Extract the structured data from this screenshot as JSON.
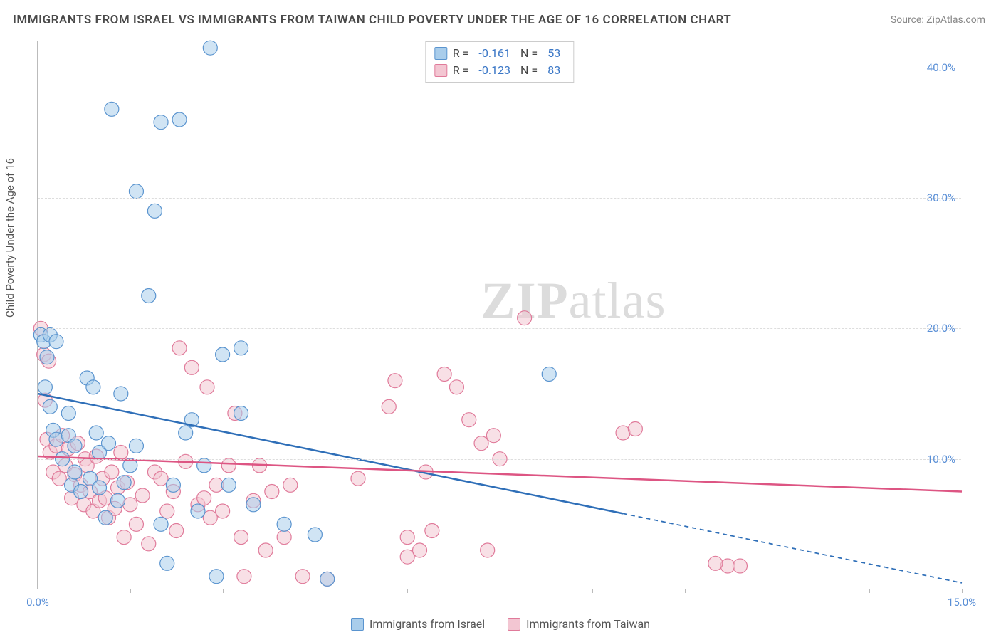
{
  "title": "IMMIGRANTS FROM ISRAEL VS IMMIGRANTS FROM TAIWAN CHILD POVERTY UNDER THE AGE OF 16 CORRELATION CHART",
  "source_prefix": "Source: ",
  "source_name": "ZipAtlas.com",
  "ylabel": "Child Poverty Under the Age of 16",
  "watermark_a": "ZIP",
  "watermark_b": "atlas",
  "chart": {
    "type": "scatter",
    "xlim": [
      0,
      15
    ],
    "ylim": [
      0,
      42
    ],
    "x_ticks": [
      0,
      1.5,
      3,
      4.5,
      6,
      7.5,
      9,
      10.5,
      12,
      13.5,
      15
    ],
    "x_tick_labels": {
      "0": "0.0%",
      "15": "15.0%"
    },
    "y_gridlines": [
      10,
      20,
      30,
      40
    ],
    "y_tick_labels": {
      "10": "10.0%",
      "20": "20.0%",
      "30": "30.0%",
      "40": "40.0%"
    },
    "grid_color": "#dddddd",
    "axis_color": "#bbbbbb",
    "label_color": "#5a8fd6",
    "background_color": "#ffffff",
    "point_radius": 10,
    "point_opacity": 0.55,
    "trend_line_width": 2.5,
    "series": [
      {
        "name": "Immigrants from Israel",
        "fill": "#a9cdeb",
        "stroke": "#5a94cf",
        "line_color": "#2f6fb8",
        "R": "-0.161",
        "N": "53",
        "trend": {
          "x1": 0,
          "y1": 15.0,
          "x2": 15,
          "y2": 0.5,
          "solid_until_x": 9.5
        },
        "points": [
          [
            0.05,
            19.5
          ],
          [
            0.1,
            19.0
          ],
          [
            0.12,
            15.5
          ],
          [
            0.15,
            17.8
          ],
          [
            0.2,
            14.0
          ],
          [
            0.2,
            19.5
          ],
          [
            0.25,
            12.2
          ],
          [
            0.3,
            19.0
          ],
          [
            0.3,
            11.5
          ],
          [
            0.4,
            10.0
          ],
          [
            0.5,
            11.8
          ],
          [
            0.5,
            13.5
          ],
          [
            0.55,
            8.0
          ],
          [
            0.6,
            9.0
          ],
          [
            0.6,
            11.0
          ],
          [
            0.7,
            7.5
          ],
          [
            0.8,
            16.2
          ],
          [
            0.85,
            8.5
          ],
          [
            0.9,
            15.5
          ],
          [
            0.95,
            12.0
          ],
          [
            1.0,
            7.8
          ],
          [
            1.0,
            10.5
          ],
          [
            1.1,
            5.5
          ],
          [
            1.15,
            11.2
          ],
          [
            1.2,
            36.8
          ],
          [
            1.3,
            6.8
          ],
          [
            1.35,
            15.0
          ],
          [
            1.4,
            8.2
          ],
          [
            1.5,
            9.5
          ],
          [
            1.6,
            11.0
          ],
          [
            1.6,
            30.5
          ],
          [
            1.8,
            22.5
          ],
          [
            1.9,
            29.0
          ],
          [
            2.0,
            5.0
          ],
          [
            2.0,
            35.8
          ],
          [
            2.1,
            2.0
          ],
          [
            2.2,
            8.0
          ],
          [
            2.3,
            36.0
          ],
          [
            2.4,
            12.0
          ],
          [
            2.5,
            13.0
          ],
          [
            2.6,
            6.0
          ],
          [
            2.7,
            9.5
          ],
          [
            2.8,
            41.5
          ],
          [
            2.9,
            1.0
          ],
          [
            3.0,
            18.0
          ],
          [
            3.1,
            8.0
          ],
          [
            3.3,
            18.5
          ],
          [
            3.3,
            13.5
          ],
          [
            3.5,
            6.5
          ],
          [
            4.0,
            5.0
          ],
          [
            4.5,
            4.2
          ],
          [
            4.7,
            0.8
          ],
          [
            8.3,
            16.5
          ]
        ]
      },
      {
        "name": "Immigrants from Taiwan",
        "fill": "#f3c6d2",
        "stroke": "#e07a9a",
        "line_color": "#dd5583",
        "R": "-0.123",
        "N": "83",
        "trend": {
          "x1": 0,
          "y1": 10.2,
          "x2": 15,
          "y2": 7.5,
          "solid_until_x": 15
        },
        "points": [
          [
            0.05,
            20.0
          ],
          [
            0.1,
            18.0
          ],
          [
            0.12,
            14.5
          ],
          [
            0.15,
            11.5
          ],
          [
            0.18,
            17.5
          ],
          [
            0.2,
            10.5
          ],
          [
            0.25,
            9.0
          ],
          [
            0.3,
            11.0
          ],
          [
            0.35,
            8.5
          ],
          [
            0.4,
            11.8
          ],
          [
            0.45,
            9.5
          ],
          [
            0.5,
            10.8
          ],
          [
            0.55,
            7.0
          ],
          [
            0.6,
            8.8
          ],
          [
            0.65,
            11.2
          ],
          [
            0.7,
            8.0
          ],
          [
            0.75,
            6.5
          ],
          [
            0.77,
            10.0
          ],
          [
            0.8,
            9.5
          ],
          [
            0.85,
            7.5
          ],
          [
            0.9,
            6.0
          ],
          [
            0.95,
            10.2
          ],
          [
            1.0,
            6.8
          ],
          [
            1.05,
            8.5
          ],
          [
            1.1,
            7.0
          ],
          [
            1.15,
            5.5
          ],
          [
            1.2,
            9.0
          ],
          [
            1.25,
            6.2
          ],
          [
            1.3,
            7.8
          ],
          [
            1.35,
            10.5
          ],
          [
            1.4,
            4.0
          ],
          [
            1.45,
            8.2
          ],
          [
            1.5,
            6.5
          ],
          [
            1.6,
            5.0
          ],
          [
            1.7,
            7.2
          ],
          [
            1.8,
            3.5
          ],
          [
            1.9,
            9.0
          ],
          [
            2.0,
            8.5
          ],
          [
            2.1,
            6.0
          ],
          [
            2.2,
            7.5
          ],
          [
            2.25,
            4.5
          ],
          [
            2.3,
            18.5
          ],
          [
            2.4,
            9.8
          ],
          [
            2.5,
            17.0
          ],
          [
            2.6,
            6.5
          ],
          [
            2.7,
            7.0
          ],
          [
            2.75,
            15.5
          ],
          [
            2.8,
            5.5
          ],
          [
            2.9,
            8.0
          ],
          [
            3.0,
            6.0
          ],
          [
            3.1,
            9.5
          ],
          [
            3.2,
            13.5
          ],
          [
            3.3,
            4.0
          ],
          [
            3.35,
            1.0
          ],
          [
            3.5,
            6.8
          ],
          [
            3.6,
            9.5
          ],
          [
            3.7,
            3.0
          ],
          [
            3.8,
            7.5
          ],
          [
            4.0,
            4.0
          ],
          [
            4.1,
            8.0
          ],
          [
            4.3,
            1.0
          ],
          [
            4.7,
            0.8
          ],
          [
            5.2,
            8.5
          ],
          [
            5.7,
            14.0
          ],
          [
            5.8,
            16.0
          ],
          [
            6.0,
            2.5
          ],
          [
            6.0,
            4.0
          ],
          [
            6.2,
            3.0
          ],
          [
            6.3,
            9.0
          ],
          [
            6.4,
            4.5
          ],
          [
            6.6,
            16.5
          ],
          [
            6.8,
            15.5
          ],
          [
            7.0,
            13.0
          ],
          [
            7.2,
            11.2
          ],
          [
            7.3,
            3.0
          ],
          [
            7.4,
            11.8
          ],
          [
            7.5,
            10.0
          ],
          [
            7.9,
            20.8
          ],
          [
            9.5,
            12.0
          ],
          [
            9.7,
            12.3
          ],
          [
            11.2,
            1.8
          ],
          [
            11.4,
            1.8
          ],
          [
            11.0,
            2.0
          ]
        ]
      }
    ]
  },
  "legend": {
    "series1_label": "Immigrants from Israel",
    "series2_label": "Immigrants from Taiwan"
  },
  "stats_labels": {
    "R": "R = ",
    "N": "N = "
  }
}
